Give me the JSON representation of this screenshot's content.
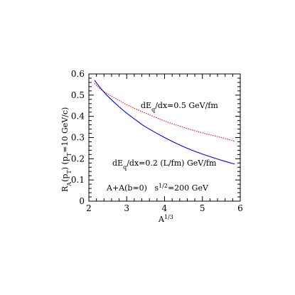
{
  "chart_data": {
    "type": "line",
    "xlabel": {
      "base": "A",
      "sup": "1/3"
    },
    "ylabel": {
      "main": "R",
      "sub": "A",
      "rest": "(p",
      "sub2": "T",
      "rest2": ") (p",
      "sub3": "T",
      "rest3": "=10 GeV/c)"
    },
    "xlim": [
      2,
      6
    ],
    "ylim": [
      0,
      0.6
    ],
    "x_ticks": [
      2,
      3,
      4,
      5,
      6
    ],
    "y_ticks": [
      0,
      0.1,
      0.2,
      0.3,
      0.4,
      0.5,
      0.6
    ],
    "x_tick_labels": [
      "2",
      "3",
      "4",
      "5",
      "6"
    ],
    "y_tick_labels": [
      "0",
      "0.1",
      "0.2",
      "0.3",
      "0.4",
      "0.5",
      "0.6"
    ],
    "grid": false,
    "series": [
      {
        "color": "#ff0000",
        "style": "dotted",
        "x": [
          2.15,
          2.3,
          2.5,
          2.8,
          3.0,
          3.3,
          3.5,
          4.0,
          4.5,
          5.0,
          5.5,
          5.85
        ],
        "y": [
          0.555,
          0.53,
          0.505,
          0.475,
          0.455,
          0.43,
          0.415,
          0.378,
          0.348,
          0.322,
          0.3,
          0.283
        ]
      },
      {
        "color": "#0000ff",
        "style": "solid",
        "x": [
          2.15,
          2.3,
          2.5,
          2.8,
          3.0,
          3.3,
          3.5,
          4.0,
          4.5,
          5.0,
          5.5,
          5.85
        ],
        "y": [
          0.57,
          0.535,
          0.495,
          0.445,
          0.415,
          0.375,
          0.35,
          0.3,
          0.257,
          0.222,
          0.193,
          0.175
        ]
      }
    ],
    "annotations": {
      "red_label": {
        "a": "dE",
        "sub": "q",
        "b": "/dx=0.5 GeV/fm"
      },
      "blue_label": {
        "a": "dE",
        "sub": "q",
        "b": "/dx=0.2 (L/fm) GeV/fm"
      },
      "system_label": {
        "a": "A+A(b=0)   s",
        "sup": "1/2",
        "b": "=200 GeV"
      }
    }
  }
}
